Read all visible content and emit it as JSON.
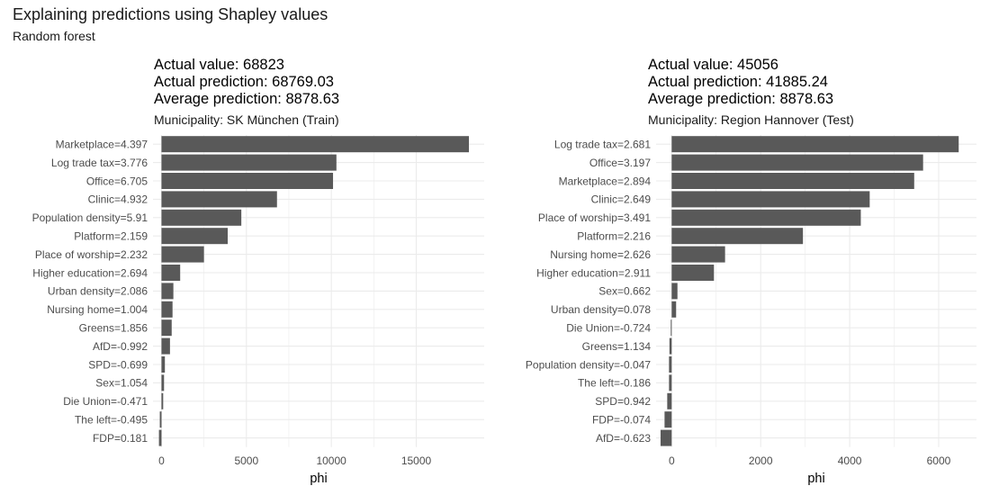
{
  "title": "Explaining predictions using Shapley values",
  "subtitle": "Random forest",
  "colors": {
    "bar": "#595959",
    "grid": "#ebebeb",
    "label": "#4d4d4d"
  },
  "chart_data": [
    {
      "type": "bar",
      "orientation": "horizontal",
      "header_lines": [
        "Actual value: 68823",
        "Actual prediction: 68769.03",
        "Average prediction: 8878.63"
      ],
      "facet_title": "Municipality: SK München (Train)",
      "xlabel": "phi",
      "xlim": [
        -500,
        19000
      ],
      "xticks": [
        0,
        5000,
        10000,
        15000
      ],
      "xtick_labels": [
        "0",
        "5000",
        "10000",
        "15000"
      ],
      "categories": [
        "Marketplace=4.397",
        "Log trade tax=3.776",
        "Office=6.705",
        "Clinic=4.932",
        "Population density=5.91",
        "Platform=2.159",
        "Place of worship=2.232",
        "Higher education=2.694",
        "Urban density=2.086",
        "Nursing home=1.004",
        "Greens=1.856",
        "AfD=-0.992",
        "SPD=-0.699",
        "Sex=1.054",
        "Die Union=-0.471",
        "The left=-0.495",
        "FDP=0.181"
      ],
      "values": [
        18100,
        10300,
        10100,
        6800,
        4700,
        3900,
        2500,
        1100,
        700,
        650,
        600,
        500,
        200,
        150,
        100,
        -100,
        -150
      ]
    },
    {
      "type": "bar",
      "orientation": "horizontal",
      "header_lines": [
        "Actual value: 45056",
        "Actual prediction: 41885.24",
        "Average prediction: 8878.63"
      ],
      "facet_title": "Municipality: Region Hannover (Test)",
      "xlabel": "phi",
      "xlim": [
        -350,
        6850
      ],
      "xticks": [
        0,
        2000,
        4000,
        6000
      ],
      "xtick_labels": [
        "0",
        "2000",
        "4000",
        "6000"
      ],
      "categories": [
        "Log trade tax=2.681",
        "Office=3.197",
        "Marketplace=2.894",
        "Clinic=2.649",
        "Place of worship=3.491",
        "Platform=2.216",
        "Nursing home=2.626",
        "Higher education=2.911",
        "Sex=0.662",
        "Urban density=0.078",
        "Die Union=-0.724",
        "Greens=1.134",
        "Population density=-0.047",
        "The left=-0.186",
        "SPD=0.942",
        "FDP=-0.074",
        "AfD=-0.623"
      ],
      "values": [
        6450,
        5650,
        5450,
        4450,
        4250,
        2950,
        1200,
        950,
        130,
        100,
        -20,
        -50,
        -60,
        -60,
        -100,
        -160,
        -250
      ]
    }
  ]
}
